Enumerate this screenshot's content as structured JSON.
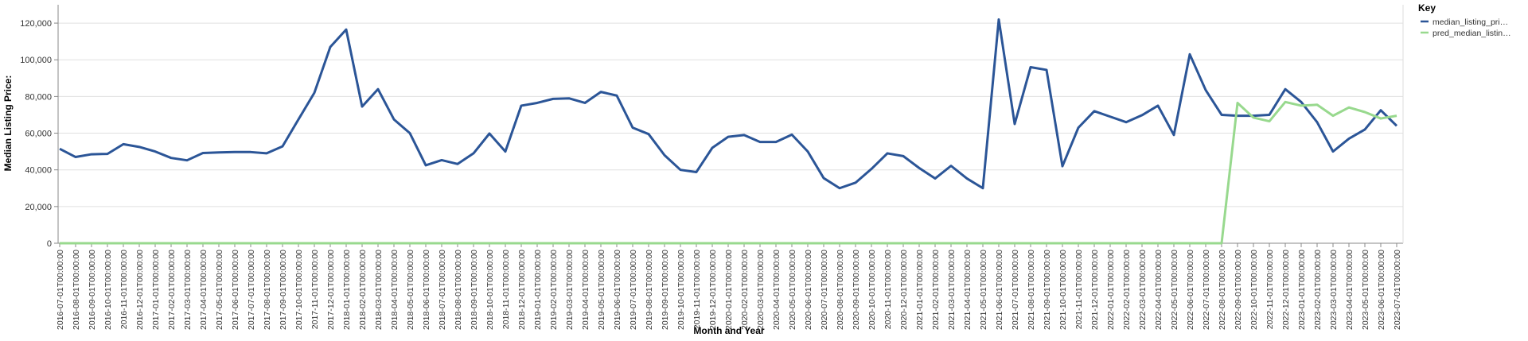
{
  "chart_data": {
    "type": "line",
    "x_label": "Month and Year",
    "y_label": "Median Listing Price:",
    "legend_title": "Key",
    "legend_position": "right",
    "grid": true,
    "categories": [
      "2016-07-01T00:00:00",
      "2016-08-01T00:00:00",
      "2016-09-01T00:00:00",
      "2016-10-01T00:00:00",
      "2016-11-01T00:00:00",
      "2016-12-01T00:00:00",
      "2017-01-01T00:00:00",
      "2017-02-01T00:00:00",
      "2017-03-01T00:00:00",
      "2017-04-01T00:00:00",
      "2017-05-01T00:00:00",
      "2017-06-01T00:00:00",
      "2017-07-01T00:00:00",
      "2017-08-01T00:00:00",
      "2017-09-01T00:00:00",
      "2017-10-01T00:00:00",
      "2017-11-01T00:00:00",
      "2017-12-01T00:00:00",
      "2018-01-01T00:00:00",
      "2018-02-01T00:00:00",
      "2018-03-01T00:00:00",
      "2018-04-01T00:00:00",
      "2018-05-01T00:00:00",
      "2018-06-01T00:00:00",
      "2018-07-01T00:00:00",
      "2018-08-01T00:00:00",
      "2018-09-01T00:00:00",
      "2018-10-01T00:00:00",
      "2018-11-01T00:00:00",
      "2018-12-01T00:00:00",
      "2019-01-01T00:00:00",
      "2019-02-01T00:00:00",
      "2019-03-01T00:00:00",
      "2019-04-01T00:00:00",
      "2019-05-01T00:00:00",
      "2019-06-01T00:00:00",
      "2019-07-01T00:00:00",
      "2019-08-01T00:00:00",
      "2019-09-01T00:00:00",
      "2019-10-01T00:00:00",
      "2019-11-01T00:00:00",
      "2019-12-01T00:00:00",
      "2020-01-01T00:00:00",
      "2020-02-01T00:00:00",
      "2020-03-01T00:00:00",
      "2020-04-01T00:00:00",
      "2020-05-01T00:00:00",
      "2020-06-01T00:00:00",
      "2020-07-01T00:00:00",
      "2020-08-01T00:00:00",
      "2020-09-01T00:00:00",
      "2020-10-01T00:00:00",
      "2020-11-01T00:00:00",
      "2020-12-01T00:00:00",
      "2021-01-01T00:00:00",
      "2021-02-01T00:00:00",
      "2021-03-01T00:00:00",
      "2021-04-01T00:00:00",
      "2021-05-01T00:00:00",
      "2021-06-01T00:00:00",
      "2021-07-01T00:00:00",
      "2021-08-01T00:00:00",
      "2021-09-01T00:00:00",
      "2021-10-01T00:00:00",
      "2021-11-01T00:00:00",
      "2021-12-01T00:00:00",
      "2022-01-01T00:00:00",
      "2022-02-01T00:00:00",
      "2022-03-01T00:00:00",
      "2022-04-01T00:00:00",
      "2022-05-01T00:00:00",
      "2022-06-01T00:00:00",
      "2022-07-01T00:00:00",
      "2022-08-01T00:00:00",
      "2022-09-01T00:00:00",
      "2022-10-01T00:00:00",
      "2022-11-01T00:00:00",
      "2022-12-01T00:00:00",
      "2023-01-01T00:00:00",
      "2023-02-01T00:00:00",
      "2023-03-01T00:00:00",
      "2023-04-01T00:00:00",
      "2023-05-01T00:00:00",
      "2023-06-01T00:00:00",
      "2023-07-01T00:00:00"
    ],
    "series": [
      {
        "name": "median_listing_pri…",
        "color": "#2b5597",
        "values": [
          51500,
          47000,
          48500,
          48700,
          54000,
          52500,
          50000,
          46500,
          45200,
          49200,
          49500,
          49700,
          49700,
          49000,
          52800,
          67500,
          82000,
          107000,
          116500,
          74500,
          84000,
          67500,
          60000,
          42500,
          45300,
          43200,
          49000,
          59800,
          50000,
          75000,
          76500,
          78700,
          79000,
          76500,
          82500,
          80500,
          63000,
          59500,
          48000,
          40000,
          38800,
          52000,
          58000,
          59000,
          55200,
          55200,
          59200,
          50000,
          35500,
          30000,
          33000,
          40500,
          49000,
          47500,
          41000,
          35300,
          42200,
          35300,
          30000,
          122000,
          65000,
          96000,
          94500,
          42000,
          63000,
          72000,
          69000,
          66000,
          69800,
          75000,
          59000,
          103000,
          83500,
          70000,
          69500,
          69500,
          70000,
          84000,
          77000,
          66000,
          50000,
          57000,
          62000,
          72500,
          64000
        ]
      },
      {
        "name": "pred_median_listin…",
        "color": "#98d98e",
        "values": [
          0,
          0,
          0,
          0,
          0,
          0,
          0,
          0,
          0,
          0,
          0,
          0,
          0,
          0,
          0,
          0,
          0,
          0,
          0,
          0,
          0,
          0,
          0,
          0,
          0,
          0,
          0,
          0,
          0,
          0,
          0,
          0,
          0,
          0,
          0,
          0,
          0,
          0,
          0,
          0,
          0,
          0,
          0,
          0,
          0,
          0,
          0,
          0,
          0,
          0,
          0,
          0,
          0,
          0,
          0,
          0,
          0,
          0,
          0,
          0,
          0,
          0,
          0,
          0,
          0,
          0,
          0,
          0,
          0,
          0,
          0,
          0,
          0,
          0,
          76500,
          68500,
          66500,
          77000,
          75000,
          75500,
          69500,
          74000,
          71500,
          68000,
          69500
        ]
      }
    ],
    "ylim": [
      0,
      130000
    ],
    "yticks": [
      0,
      {
        "value": 20000,
        "label": "20,000"
      },
      {
        "value": 40000,
        "label": "40,000"
      },
      {
        "value": 60000,
        "label": "60,000"
      },
      {
        "value": 80000,
        "label": "80,000"
      },
      {
        "value": 100000,
        "label": "100,000"
      },
      {
        "value": 120000,
        "label": "120,000"
      }
    ]
  }
}
